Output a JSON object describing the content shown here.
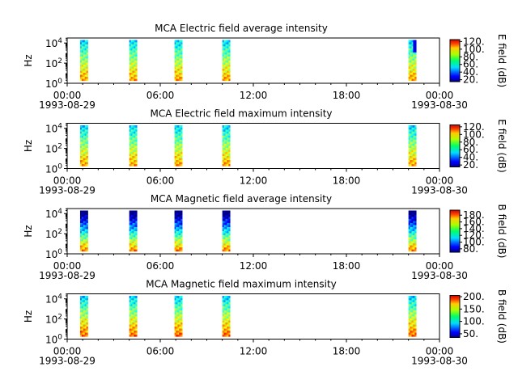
{
  "chart_data": [
    {
      "type": "heatmap",
      "title": "MCA  Electric field average intensity",
      "ylabel": "Hz",
      "y_scale": "log",
      "y_ticks": [
        "10^0",
        "10^2",
        "10^4"
      ],
      "x_ticks": [
        "00:00",
        "06:00",
        "12:00",
        "18:00",
        "00:00"
      ],
      "x_dates": [
        "1993-08-29",
        "1993-08-30"
      ],
      "xlim": [
        "1993-08-29 00:00",
        "1993-08-30 00:00"
      ],
      "colorbar": {
        "label": "E field (dB)",
        "ticks": [
          "20.",
          "40.",
          "60.",
          "80.",
          "100.",
          "120."
        ],
        "range": [
          15,
          125
        ],
        "scale": "jet"
      },
      "data_intervals": [
        [
          "00:50",
          "01:20"
        ],
        [
          "04:00",
          "04:30"
        ],
        [
          "06:55",
          "07:25"
        ],
        [
          "10:00",
          "10:30"
        ],
        [
          "22:00",
          "22:30"
        ]
      ],
      "freq_range_hz": [
        1.8,
        20000
      ]
    },
    {
      "type": "heatmap",
      "title": "MCA  Electric field maximum intensity",
      "ylabel": "Hz",
      "y_scale": "log",
      "y_ticks": [
        "10^0",
        "10^2",
        "10^4"
      ],
      "x_ticks": [
        "00:00",
        "06:00",
        "12:00",
        "18:00",
        "00:00"
      ],
      "x_dates": [
        "1993-08-29",
        "1993-08-30"
      ],
      "xlim": [
        "1993-08-29 00:00",
        "1993-08-30 00:00"
      ],
      "colorbar": {
        "label": "E field (dB)",
        "ticks": [
          "20.",
          "40.",
          "60.",
          "80.",
          "100.",
          "120."
        ],
        "range": [
          15,
          125
        ],
        "scale": "jet"
      },
      "data_intervals": [
        [
          "00:50",
          "01:20"
        ],
        [
          "04:00",
          "04:30"
        ],
        [
          "06:55",
          "07:25"
        ],
        [
          "10:00",
          "10:30"
        ],
        [
          "22:00",
          "22:30"
        ]
      ],
      "freq_range_hz": [
        1.8,
        20000
      ]
    },
    {
      "type": "heatmap",
      "title": "MCA  Magnetic field average intensity",
      "ylabel": "Hz",
      "y_scale": "log",
      "y_ticks": [
        "10^0",
        "10^2",
        "10^4"
      ],
      "x_ticks": [
        "00:00",
        "06:00",
        "12:00",
        "18:00",
        "00:00"
      ],
      "x_dates": [
        "1993-08-29",
        "1993-08-30"
      ],
      "xlim": [
        "1993-08-29 00:00",
        "1993-08-30 00:00"
      ],
      "colorbar": {
        "label": "B field (dB)",
        "ticks": [
          "80.",
          "100.",
          "120.",
          "140.",
          "160.",
          "180."
        ],
        "range": [
          70,
          195
        ],
        "scale": "jet"
      },
      "data_intervals": [
        [
          "00:50",
          "01:20"
        ],
        [
          "04:00",
          "04:30"
        ],
        [
          "06:55",
          "07:25"
        ],
        [
          "10:00",
          "10:30"
        ],
        [
          "22:00",
          "22:30"
        ]
      ],
      "freq_range_hz": [
        1.8,
        20000
      ]
    },
    {
      "type": "heatmap",
      "title": "MCA  Magnetic field maximum intensity",
      "ylabel": "Hz",
      "y_scale": "log",
      "y_ticks": [
        "10^0",
        "10^2",
        "10^4"
      ],
      "x_ticks": [
        "00:00",
        "06:00",
        "12:00",
        "18:00",
        "00:00"
      ],
      "x_dates": [
        "1993-08-29",
        "1993-08-30"
      ],
      "xlim": [
        "1993-08-29 00:00",
        "1993-08-30 00:00"
      ],
      "colorbar": {
        "label": "B field (dB)",
        "ticks": [
          "50.",
          "100.",
          "150.",
          "200."
        ],
        "range": [
          35,
          205
        ],
        "scale": "jet"
      },
      "data_intervals": [
        [
          "00:50",
          "01:20"
        ],
        [
          "04:00",
          "04:30"
        ],
        [
          "06:55",
          "07:25"
        ],
        [
          "10:00",
          "10:30"
        ],
        [
          "22:00",
          "22:30"
        ]
      ],
      "freq_range_hz": [
        1.8,
        20000
      ]
    }
  ]
}
